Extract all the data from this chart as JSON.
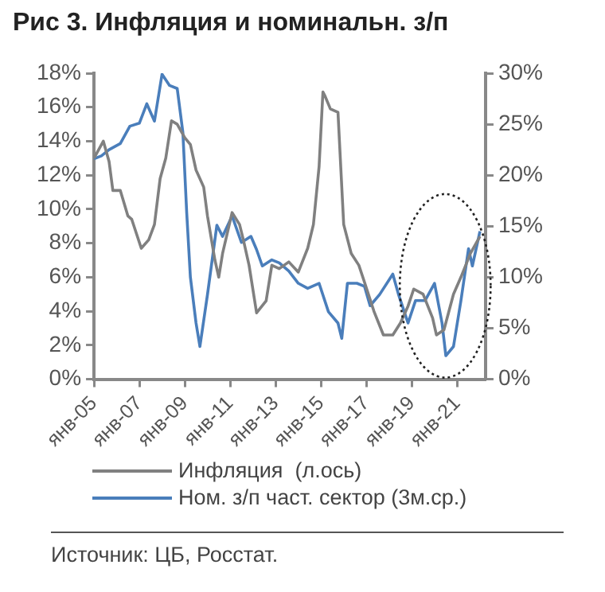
{
  "chart_data": {
    "type": "line",
    "title": "Рис 3. Инфляция и номинальн. з/п",
    "xlim": [
      "2005-01",
      "2022-04"
    ],
    "xticks": [
      {
        "value": "2005-01",
        "label": "янв-05"
      },
      {
        "value": "2007-01",
        "label": "янв-07"
      },
      {
        "value": "2009-01",
        "label": "янв-09"
      },
      {
        "value": "2011-01",
        "label": "янв-11"
      },
      {
        "value": "2013-01",
        "label": "янв-13"
      },
      {
        "value": "2015-01",
        "label": "янв-15"
      },
      {
        "value": "2017-01",
        "label": "янв-17"
      },
      {
        "value": "2019-01",
        "label": "янв-19"
      },
      {
        "value": "2021-01",
        "label": "янв-21"
      }
    ],
    "ylim": [
      0,
      18
    ],
    "yticks": [
      {
        "value": 0,
        "label": "0%"
      },
      {
        "value": 2,
        "label": "2%"
      },
      {
        "value": 4,
        "label": "4%"
      },
      {
        "value": 6,
        "label": "6%"
      },
      {
        "value": 8,
        "label": "8%"
      },
      {
        "value": 10,
        "label": "10%"
      },
      {
        "value": 12,
        "label": "12%"
      },
      {
        "value": 14,
        "label": "14%"
      },
      {
        "value": 16,
        "label": "16%"
      },
      {
        "value": 18,
        "label": "18%"
      }
    ],
    "y2lim": [
      0,
      30
    ],
    "y2ticks": [
      {
        "value": 0,
        "label": "0%"
      },
      {
        "value": 5,
        "label": "5%"
      },
      {
        "value": 10,
        "label": "10%"
      },
      {
        "value": 15,
        "label": "15%"
      },
      {
        "value": 20,
        "label": "20%"
      },
      {
        "value": 25,
        "label": "25%"
      },
      {
        "value": 30,
        "label": "30%"
      }
    ],
    "grid": false,
    "legend": "bottom",
    "marker": "none",
    "line_style": "solid",
    "series": [
      {
        "name": "Инфляция  (л.ось)",
        "color": "#808080",
        "x": [
          "2005-01",
          "2005-06",
          "2005-09",
          "2005-11",
          "2006-03",
          "2006-07",
          "2006-09",
          "2007-02",
          "2007-06",
          "2007-09",
          "2007-12",
          "2008-03",
          "2008-06",
          "2008-09",
          "2009-01",
          "2009-04",
          "2009-07",
          "2009-11",
          "2010-01",
          "2010-05",
          "2010-07",
          "2010-09",
          "2011-02",
          "2011-06",
          "2011-08",
          "2011-11",
          "2012-03",
          "2012-08",
          "2012-11",
          "2013-03",
          "2013-08",
          "2014-01",
          "2014-06",
          "2014-09",
          "2014-12",
          "2015-02",
          "2015-03",
          "2015-06",
          "2015-10",
          "2016-01",
          "2016-05",
          "2016-09",
          "2016-12",
          "2017-05",
          "2017-10",
          "2018-03",
          "2018-07",
          "2018-11",
          "2019-02",
          "2019-07",
          "2019-12",
          "2020-02",
          "2020-06",
          "2020-11",
          "2021-03",
          "2021-08",
          "2022-01"
        ],
        "values": [
          13.0,
          14.0,
          12.8,
          11.1,
          11.1,
          9.6,
          9.4,
          7.7,
          8.2,
          9.1,
          11.8,
          13.0,
          15.2,
          15.0,
          14.2,
          13.8,
          12.3,
          11.3,
          9.6,
          7.0,
          6.0,
          7.4,
          9.8,
          9.1,
          8.2,
          6.7,
          3.9,
          4.6,
          6.7,
          6.5,
          6.9,
          6.3,
          7.7,
          9.1,
          12.5,
          16.9,
          16.7,
          15.9,
          15.7,
          9.1,
          7.4,
          6.7,
          5.7,
          4.0,
          2.6,
          2.6,
          3.3,
          4.3,
          5.3,
          5.0,
          3.6,
          2.6,
          2.9,
          5.0,
          6.0,
          7.4,
          8.4
        ]
      },
      {
        "name": "Ном. з/п част. сектор (3м.ср.)",
        "color": "#4a7ebb",
        "axis": "y2",
        "x": [
          "2005-01",
          "2005-05",
          "2005-09",
          "2006-03",
          "2006-08",
          "2007-01",
          "2007-05",
          "2007-09",
          "2008-01",
          "2008-05",
          "2008-09",
          "2008-12",
          "2009-02",
          "2009-04",
          "2009-07",
          "2009-09",
          "2010-01",
          "2010-06",
          "2010-09",
          "2011-02",
          "2011-07",
          "2011-12",
          "2012-03",
          "2012-06",
          "2012-11",
          "2013-03",
          "2013-08",
          "2014-01",
          "2014-06",
          "2014-12",
          "2015-05",
          "2015-10",
          "2015-12",
          "2016-03",
          "2016-08",
          "2016-12",
          "2017-03",
          "2017-08",
          "2018-03",
          "2018-06",
          "2018-11",
          "2019-03",
          "2019-08",
          "2020-01",
          "2020-05",
          "2020-07",
          "2020-11",
          "2021-03",
          "2021-07",
          "2021-09",
          "2022-01"
        ],
        "values": [
          21.6,
          21.9,
          22.5,
          23.1,
          24.8,
          25.1,
          27.0,
          25.3,
          29.9,
          28.8,
          28.5,
          24.2,
          16.3,
          10.0,
          5.5,
          3.2,
          8.3,
          15.1,
          14.0,
          16.0,
          13.4,
          14.0,
          12.7,
          11.1,
          11.7,
          11.4,
          10.6,
          9.4,
          8.9,
          9.4,
          6.6,
          5.5,
          4.0,
          9.4,
          9.4,
          9.1,
          7.2,
          8.3,
          10.3,
          8.3,
          5.5,
          7.7,
          7.7,
          9.4,
          5.5,
          2.3,
          3.2,
          7.7,
          12.8,
          11.1,
          14.5
        ]
      }
    ],
    "annotations": [
      "Источник: ЦБ, Росстат."
    ]
  }
}
